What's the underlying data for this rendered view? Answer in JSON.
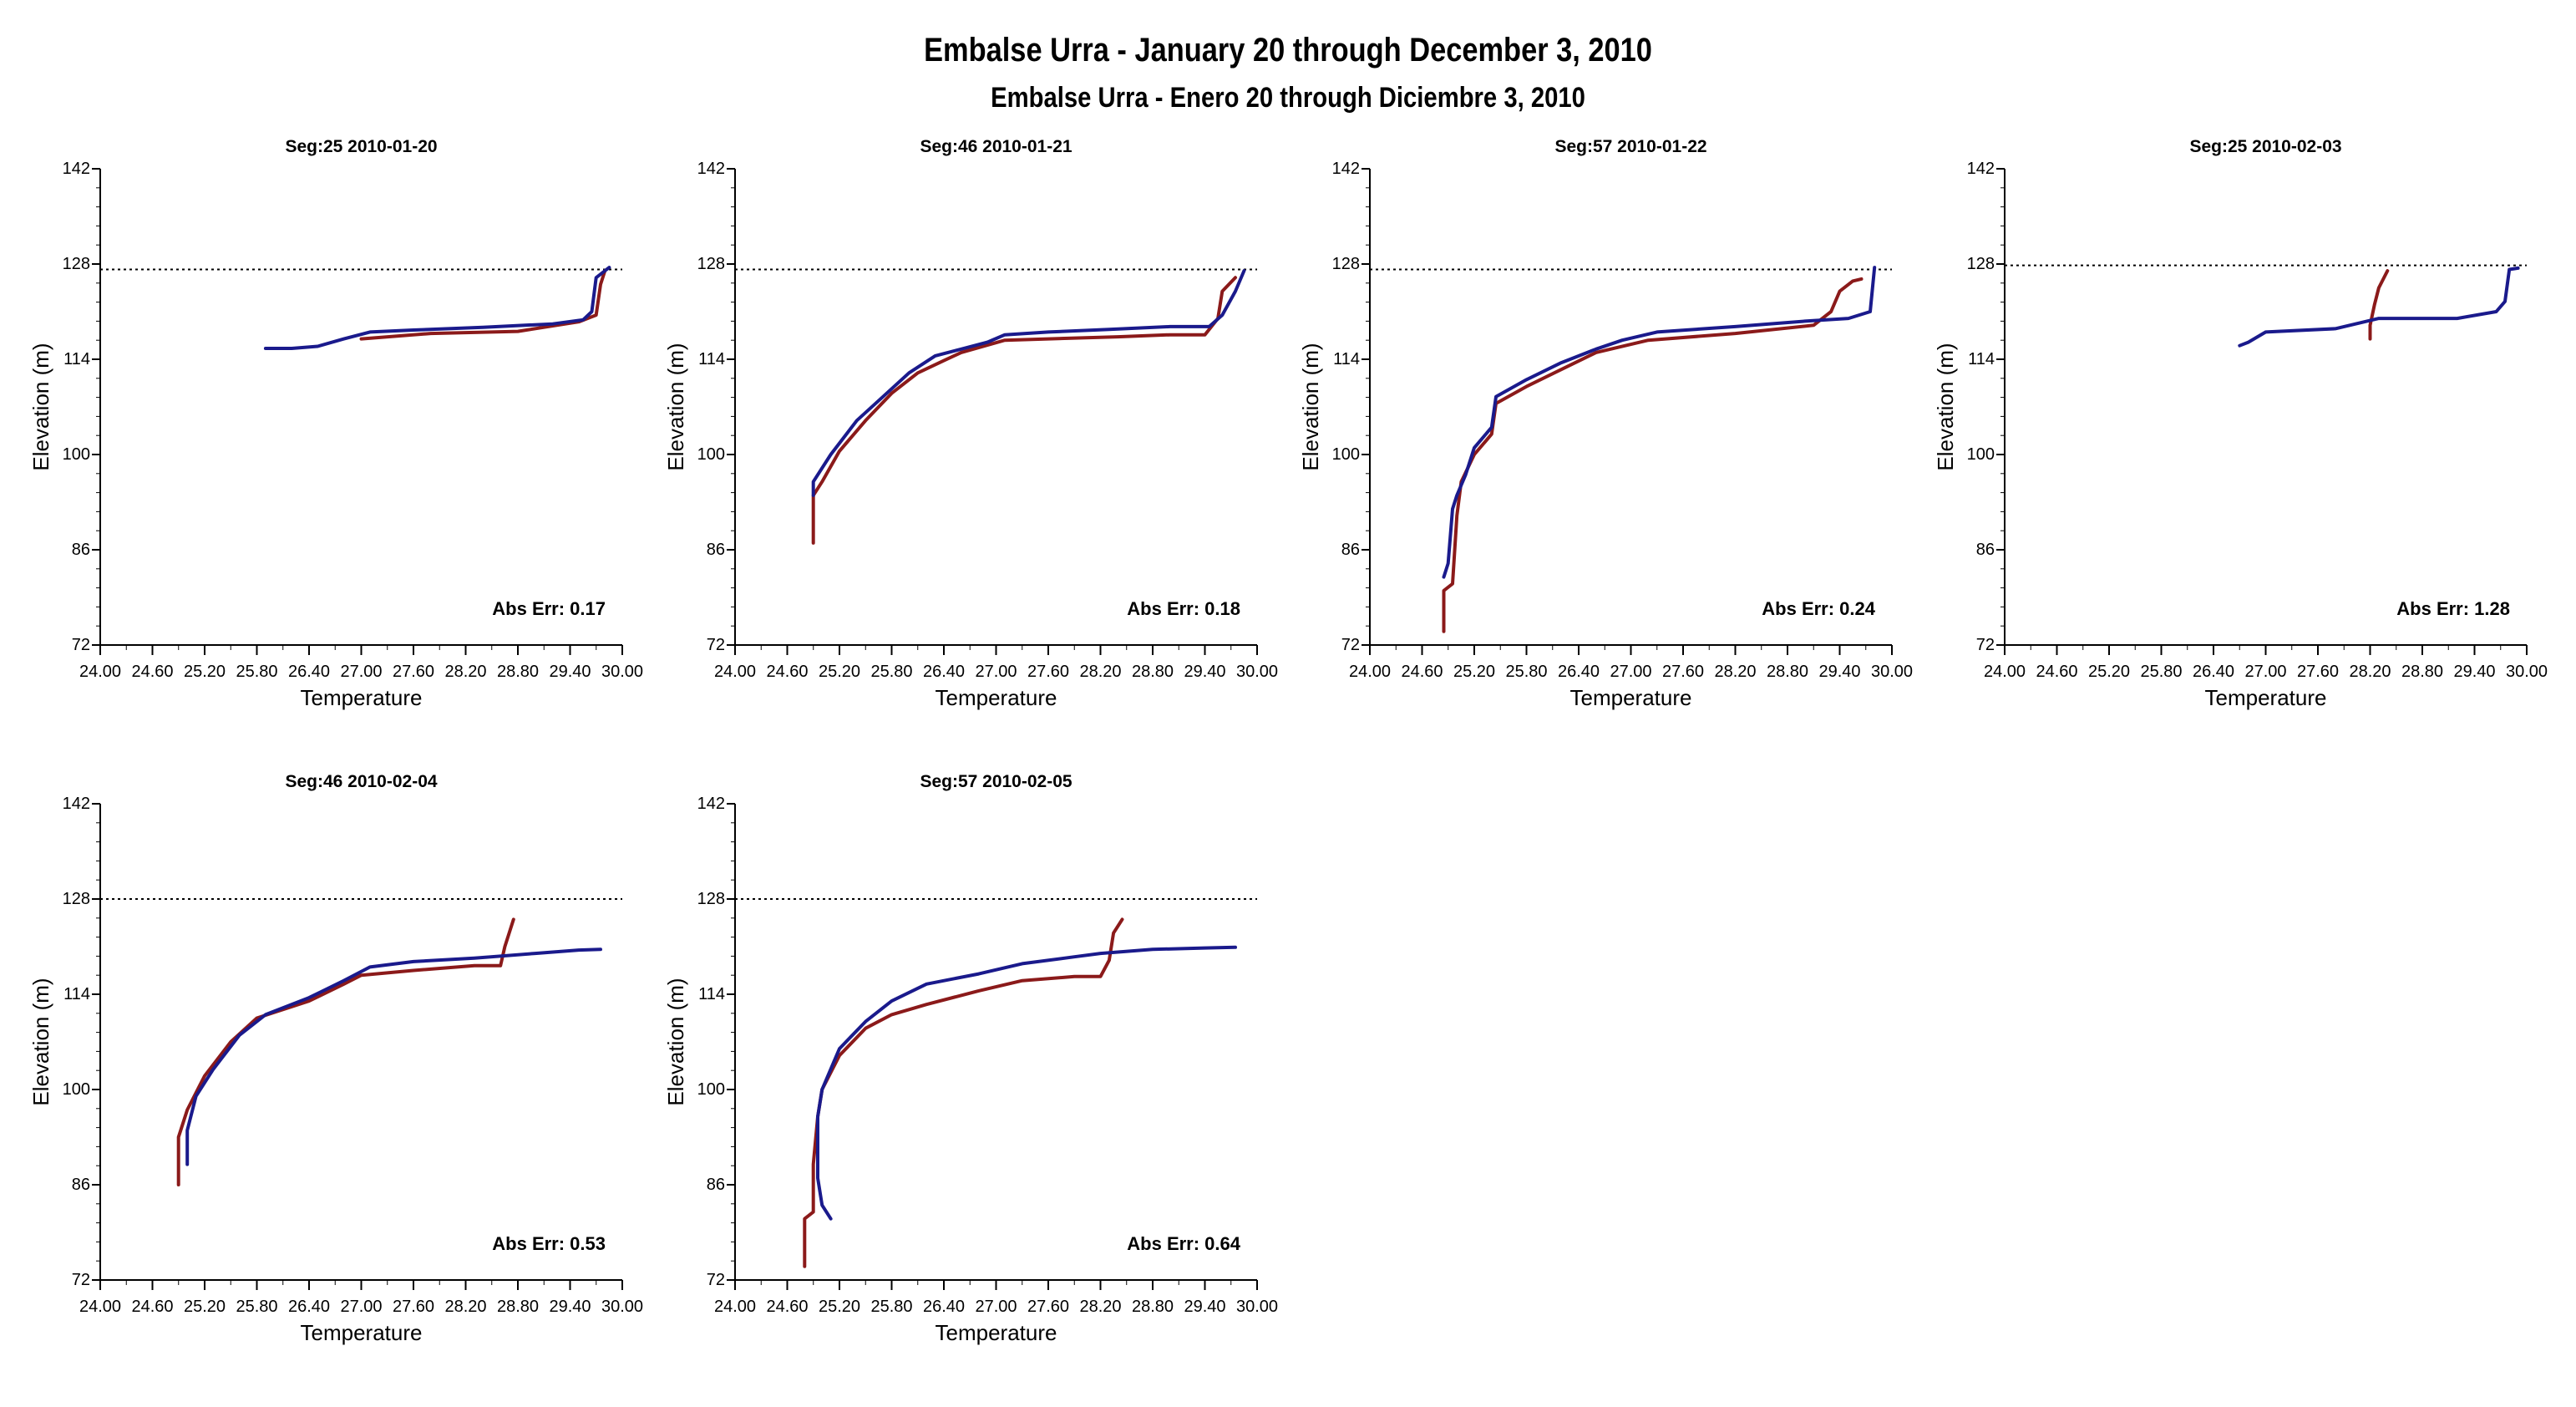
{
  "title": "Embalse Urra - January 20 through December 3, 2010",
  "subtitle": "Embalse Urra - Enero 20 through Diciembre 3, 2010",
  "colors": {
    "observed": "#8b1a1a",
    "model": "#1a1a8c",
    "axis": "#000000"
  },
  "chart_data": [
    {
      "type": "line",
      "title": "Seg:25  2010-01-20",
      "xlabel": "Temperature",
      "ylabel": "Elevation (m)",
      "xlim": [
        24.0,
        30.0
      ],
      "ylim": [
        72,
        142
      ],
      "xticks": [
        "24.00",
        "24.60",
        "25.20",
        "25.80",
        "26.40",
        "27.00",
        "27.60",
        "28.20",
        "28.80",
        "29.40",
        "30.00"
      ],
      "yticks": [
        "72",
        "86",
        "100",
        "114",
        "128",
        "142"
      ],
      "water_surface": 127.2,
      "annotation": "Abs Err: 0.17",
      "series": [
        {
          "name": "observed",
          "x": [
            27.0,
            27.8,
            28.8,
            29.5,
            29.7,
            29.75,
            29.8
          ],
          "y": [
            117.0,
            117.8,
            118.1,
            119.5,
            120.5,
            125.0,
            127.0
          ]
        },
        {
          "name": "model",
          "x": [
            25.9,
            26.2,
            26.5,
            26.8,
            27.1,
            27.6,
            28.4,
            29.2,
            29.55,
            29.65,
            29.7,
            29.85
          ],
          "y": [
            115.6,
            115.6,
            115.9,
            117.0,
            118.0,
            118.3,
            118.7,
            119.2,
            119.8,
            121.0,
            126.0,
            127.5
          ]
        }
      ]
    },
    {
      "type": "line",
      "title": "Seg:46  2010-01-21",
      "xlabel": "Temperature",
      "ylabel": "Elevation (m)",
      "xlim": [
        24.0,
        30.0
      ],
      "ylim": [
        72,
        142
      ],
      "xticks": [
        "24.00",
        "24.60",
        "25.20",
        "25.80",
        "26.40",
        "27.00",
        "27.60",
        "28.20",
        "28.80",
        "29.40",
        "30.00"
      ],
      "yticks": [
        "72",
        "86",
        "100",
        "114",
        "128",
        "142"
      ],
      "water_surface": 127.2,
      "annotation": "Abs Err: 0.18",
      "series": [
        {
          "name": "observed",
          "x": [
            24.9,
            24.9,
            25.0,
            25.2,
            25.5,
            25.8,
            26.1,
            26.4,
            26.6,
            27.1,
            27.6,
            28.4,
            29.0,
            29.4,
            29.55,
            29.6,
            29.75
          ],
          "y": [
            87.0,
            94.0,
            96.0,
            100.5,
            105.0,
            109.0,
            112.0,
            113.8,
            115.0,
            116.8,
            117.0,
            117.3,
            117.6,
            117.6,
            120.0,
            124.0,
            126.0
          ]
        },
        {
          "name": "model",
          "x": [
            24.9,
            24.9,
            25.1,
            25.4,
            25.7,
            26.0,
            26.3,
            26.6,
            26.9,
            27.1,
            27.6,
            28.3,
            29.0,
            29.45,
            29.6,
            29.75,
            29.85
          ],
          "y": [
            94.0,
            96.0,
            100.0,
            105.0,
            108.5,
            112.0,
            114.5,
            115.5,
            116.5,
            117.6,
            118.0,
            118.4,
            118.8,
            118.8,
            120.5,
            124.0,
            127.0
          ]
        }
      ]
    },
    {
      "type": "line",
      "title": "Seg:57  2010-01-22",
      "xlabel": "Temperature",
      "ylabel": "Elevation (m)",
      "xlim": [
        24.0,
        30.0
      ],
      "ylim": [
        72,
        142
      ],
      "xticks": [
        "24.00",
        "24.60",
        "25.20",
        "25.80",
        "26.40",
        "27.00",
        "27.60",
        "28.20",
        "28.80",
        "29.40",
        "30.00"
      ],
      "yticks": [
        "72",
        "86",
        "100",
        "114",
        "128",
        "142"
      ],
      "water_surface": 127.2,
      "annotation": "Abs Err: 0.24",
      "series": [
        {
          "name": "observed",
          "x": [
            24.85,
            24.85,
            24.95,
            25.0,
            25.05,
            25.2,
            25.4,
            25.45,
            25.8,
            26.2,
            26.6,
            27.2,
            28.2,
            29.1,
            29.3,
            29.4,
            29.55,
            29.65
          ],
          "y": [
            74.0,
            80.0,
            81.0,
            91.0,
            96.0,
            100.0,
            103.0,
            107.5,
            110.0,
            112.5,
            115.0,
            116.8,
            117.8,
            119.0,
            121.0,
            124.0,
            125.5,
            125.8
          ]
        },
        {
          "name": "model",
          "x": [
            24.85,
            24.9,
            24.95,
            25.0,
            25.1,
            25.2,
            25.4,
            25.45,
            25.8,
            26.2,
            26.6,
            26.9,
            27.3,
            28.2,
            29.0,
            29.5,
            29.75,
            29.8
          ],
          "y": [
            82.0,
            84.0,
            92.0,
            94.0,
            97.0,
            101.0,
            104.0,
            108.5,
            111.0,
            113.5,
            115.5,
            116.8,
            118.0,
            118.8,
            119.6,
            120.0,
            121.0,
            127.5
          ]
        }
      ]
    },
    {
      "type": "line",
      "title": "Seg:25  2010-02-03",
      "xlabel": "Temperature",
      "ylabel": "Elevation (m)",
      "xlim": [
        24.0,
        30.0
      ],
      "ylim": [
        72,
        142
      ],
      "xticks": [
        "24.00",
        "24.60",
        "25.20",
        "25.80",
        "26.40",
        "27.00",
        "27.60",
        "28.20",
        "28.80",
        "29.40",
        "30.00"
      ],
      "yticks": [
        "72",
        "86",
        "100",
        "114",
        "128",
        "142"
      ],
      "water_surface": 127.8,
      "annotation": "Abs Err: 1.28",
      "series": [
        {
          "name": "observed",
          "x": [
            28.2,
            28.2,
            28.25,
            28.3,
            28.4
          ],
          "y": [
            117.0,
            119.0,
            122.0,
            124.5,
            127.0
          ]
        },
        {
          "name": "model",
          "x": [
            26.7,
            26.8,
            27.0,
            27.8,
            28.3,
            29.2,
            29.65,
            29.75,
            29.8,
            29.9
          ],
          "y": [
            116.0,
            116.5,
            118.0,
            118.5,
            120.0,
            120.0,
            121.0,
            122.5,
            127.2,
            127.4
          ]
        }
      ]
    },
    {
      "type": "line",
      "title": "Seg:46  2010-02-04",
      "xlabel": "Temperature",
      "ylabel": "Elevation (m)",
      "xlim": [
        24.0,
        30.0
      ],
      "ylim": [
        72,
        142
      ],
      "xticks": [
        "24.00",
        "24.60",
        "25.20",
        "25.80",
        "26.40",
        "27.00",
        "27.60",
        "28.20",
        "28.80",
        "29.40",
        "30.00"
      ],
      "yticks": [
        "72",
        "86",
        "100",
        "114",
        "128",
        "142"
      ],
      "water_surface": 128.0,
      "annotation": "Abs Err: 0.53",
      "series": [
        {
          "name": "observed",
          "x": [
            24.9,
            24.9,
            25.0,
            25.2,
            25.5,
            25.8,
            26.4,
            26.8,
            27.0,
            27.6,
            28.3,
            28.6,
            28.65,
            28.7,
            28.75
          ],
          "y": [
            86.0,
            93.0,
            97.0,
            102.0,
            107.0,
            110.5,
            113.0,
            115.5,
            116.8,
            117.5,
            118.2,
            118.2,
            121.0,
            123.0,
            125.0
          ]
        },
        {
          "name": "model",
          "x": [
            25.0,
            25.0,
            25.1,
            25.3,
            25.6,
            25.9,
            26.4,
            26.8,
            27.1,
            27.6,
            28.3,
            29.0,
            29.5,
            29.75
          ],
          "y": [
            89.0,
            94.0,
            99.0,
            103.0,
            108.0,
            111.0,
            113.5,
            116.0,
            118.0,
            118.8,
            119.3,
            120.0,
            120.5,
            120.6
          ]
        }
      ]
    },
    {
      "type": "line",
      "title": "Seg:57  2010-02-05",
      "xlabel": "Temperature",
      "ylabel": "Elevation (m)",
      "xlim": [
        24.0,
        30.0
      ],
      "ylim": [
        72,
        142
      ],
      "xticks": [
        "24.00",
        "24.60",
        "25.20",
        "25.80",
        "26.40",
        "27.00",
        "27.60",
        "28.20",
        "28.80",
        "29.40",
        "30.00"
      ],
      "yticks": [
        "72",
        "86",
        "100",
        "114",
        "128",
        "142"
      ],
      "water_surface": 128.0,
      "annotation": "Abs Err: 0.64",
      "series": [
        {
          "name": "observed",
          "x": [
            24.8,
            24.8,
            24.9,
            24.9,
            24.95,
            25.0,
            25.2,
            25.5,
            25.8,
            26.2,
            26.8,
            27.3,
            27.9,
            28.2,
            28.3,
            28.35,
            28.45
          ],
          "y": [
            74.0,
            81.0,
            82.0,
            89.0,
            96.0,
            100.0,
            105.0,
            109.0,
            111.0,
            112.5,
            114.5,
            116.0,
            116.6,
            116.6,
            119.0,
            123.0,
            125.0
          ]
        },
        {
          "name": "model",
          "x": [
            25.1,
            25.0,
            24.95,
            24.95,
            25.0,
            25.2,
            25.5,
            25.8,
            26.2,
            26.8,
            27.3,
            27.9,
            28.2,
            28.8,
            29.4,
            29.75
          ],
          "y": [
            81.0,
            83.0,
            87.0,
            96.0,
            100.0,
            106.0,
            110.0,
            113.0,
            115.5,
            117.0,
            118.5,
            119.5,
            120.0,
            120.6,
            120.8,
            120.9
          ]
        }
      ]
    }
  ]
}
